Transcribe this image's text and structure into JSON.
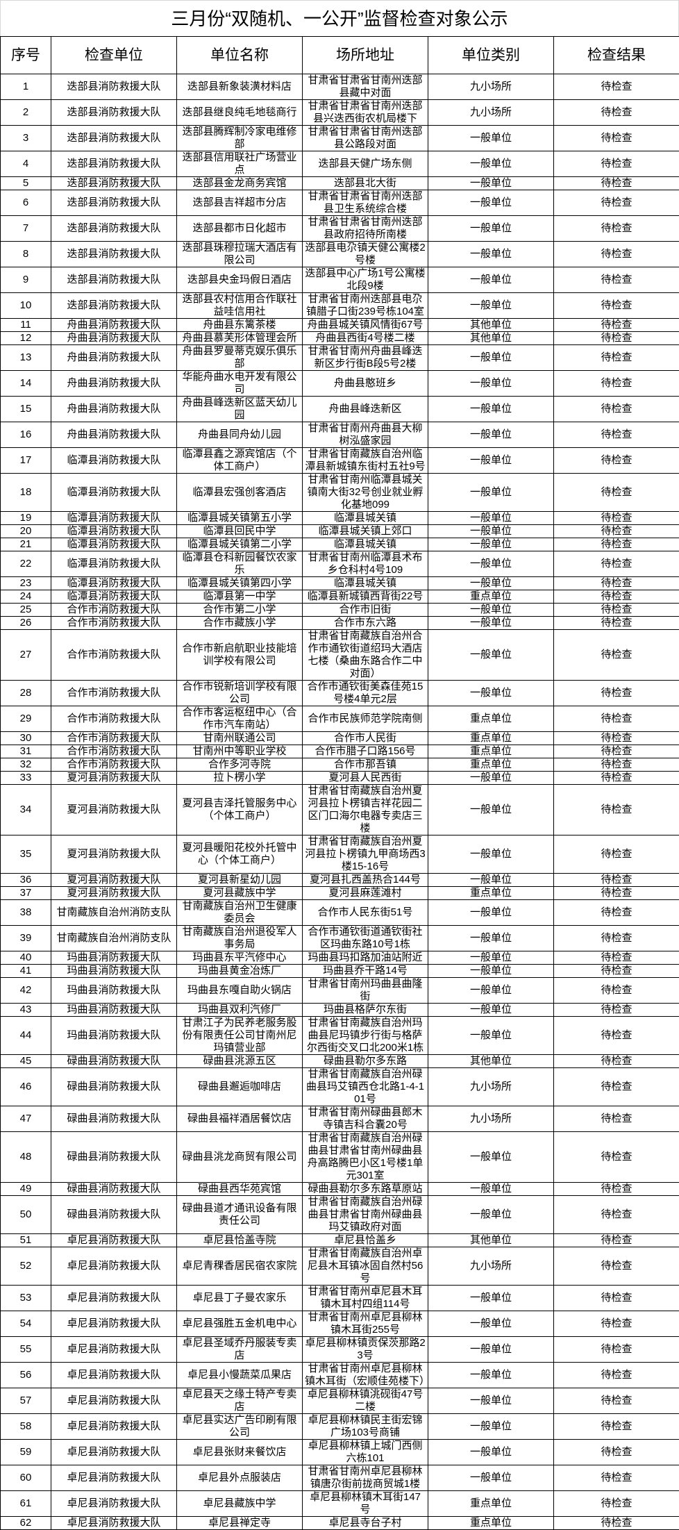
{
  "title": "三月份“双随机、一公开”监督检查对象公示",
  "columns": [
    "序号",
    "检查单位",
    "单位名称",
    "场所地址",
    "单位类别",
    "检查结果"
  ],
  "rows": [
    [
      "1",
      "迭部县消防救援大队",
      "迭部县新象装潢材料店",
      "甘肃省甘肃省甘南州迭部县藏中对面",
      "九小场所",
      "待检查"
    ],
    [
      "2",
      "迭部县消防救援大队",
      "迭部县继良纯毛地毯商行",
      "甘肃省甘肃省甘南州迭部县兴迭西街农机局楼下",
      "九小场所",
      "待检查"
    ],
    [
      "3",
      "迭部县消防救援大队",
      "迭部县腾辉制冷家电维修部",
      "甘肃省甘肃省甘南州迭部县公路段对面",
      "一般单位",
      "待检查"
    ],
    [
      "4",
      "迭部县消防救援大队",
      "迭部县信用联社广场营业点",
      "迭部县天健广场东侧",
      "一般单位",
      "待检查"
    ],
    [
      "5",
      "迭部县消防救援大队",
      "迭部县金龙商务宾馆",
      "迭部县北大街",
      "一般单位",
      "待检查"
    ],
    [
      "6",
      "迭部县消防救援大队",
      "迭部县吉祥超市分店",
      "甘肃省甘肃省甘南州迭部县卫生系统综合楼",
      "一般单位",
      "待检查"
    ],
    [
      "7",
      "迭部县消防救援大队",
      "迭部县都市日化超市",
      "甘肃省甘肃省甘南州迭部县政府招待所南楼",
      "一般单位",
      "待检查"
    ],
    [
      "8",
      "迭部县消防救援大队",
      "迭部县珠穆拉瑞大酒店有限公司",
      "迭部县电尕镇天健公寓楼2号楼",
      "一般单位",
      "待检查"
    ],
    [
      "9",
      "迭部县消防救援大队",
      "迭部县央金玛假日酒店",
      "迭部县中心广场1号公寓楼北段9楼",
      "一般单位",
      "待检查"
    ],
    [
      "10",
      "迭部县消防救援大队",
      "迭部县农村信用合作联社益哇信用社",
      "甘肃省甘南州迭部县电尕镇腊子口街239号栋104室",
      "一般单位",
      "待检查"
    ],
    [
      "11",
      "舟曲县消防救援大队",
      "舟曲县东篱茶楼",
      "舟曲县城关镇风情街67号",
      "其他单位",
      "待检查"
    ],
    [
      "12",
      "舟曲县消防救援大队",
      "舟曲县慕芙形体管理会所",
      "舟曲县西街4号楼二楼",
      "其他单位",
      "待检查"
    ],
    [
      "13",
      "舟曲县消防救援大队",
      "舟曲县罗曼蒂克娱乐俱乐部",
      "甘肃省甘南州舟曲县峰迭新区步行街B段5号2楼",
      "一般单位",
      "待检查"
    ],
    [
      "14",
      "舟曲县消防救援大队",
      "华能舟曲水电开发有限公司",
      "舟曲县憨班乡",
      "一般单位",
      "待检查"
    ],
    [
      "15",
      "舟曲县消防救援大队",
      "舟曲县峰迭新区蓝天幼儿园",
      "舟曲县峰迭新区",
      "一般单位",
      "待检查"
    ],
    [
      "16",
      "舟曲县消防救援大队",
      "舟曲县同舟幼儿园",
      "甘肃省甘南州舟曲县大柳树泓盛家园",
      "一般单位",
      "待检查"
    ],
    [
      "17",
      "临潭县消防救援大队",
      "临潭县鑫之源宾馆店（个体工商户）",
      "甘肃省甘南藏族自治州临潭县新城镇东街村五社9号",
      "一般单位",
      "待检查"
    ],
    [
      "18",
      "临潭县消防救援大队",
      "临潭县宏强创客酒店",
      "甘肃省甘南州临潭县城关镇南大街32号创业就业孵化基地099",
      "一般单位",
      "待检查"
    ],
    [
      "19",
      "临潭县消防救援大队",
      "临潭县城关镇第五小学",
      "临潭县城关镇",
      "一般单位",
      "待检查"
    ],
    [
      "20",
      "临潭县消防救援大队",
      "临潭县回民中学",
      "临潭县城关镇上郊口",
      "一般单位",
      "待检查"
    ],
    [
      "21",
      "临潭县消防救援大队",
      "临潭县城关镇第二小学",
      "临潭县城关镇",
      "一般单位",
      "待检查"
    ],
    [
      "22",
      "临潭县消防救援大队",
      "临潭县仓科新园餐饮农家乐",
      "甘肃省甘南州临潭县术布乡仓科村4号109",
      "一般单位",
      "待检查"
    ],
    [
      "23",
      "临潭县消防救援大队",
      "临潭县城关镇第四小学",
      "临潭县城关镇",
      "一般单位",
      "待检查"
    ],
    [
      "24",
      "临潭县消防救援大队",
      "临潭县第一中学",
      "临潭县新城镇西背街22号",
      "重点单位",
      "待检查"
    ],
    [
      "25",
      "合作市消防救援大队",
      "合作市第二小学",
      "合作市旧街",
      "一般单位",
      "待检查"
    ],
    [
      "26",
      "合作市消防救援大队",
      "合作市藏族小学",
      "合作市东六路",
      "一般单位",
      "待检查"
    ],
    [
      "27",
      "合作市消防救援大队",
      "合作市新启航职业技能培训学校有限公司",
      "甘肃省甘南藏族自治州合作市通钦街道绍玛大酒店七楼（桑曲东路合作二中对面）",
      "一般单位",
      "待检查"
    ],
    [
      "28",
      "合作市消防救援大队",
      "合作市锐新培训学校有限公司",
      "合作市通钦街美森佳苑15号楼4单元2层",
      "一般单位",
      "待检查"
    ],
    [
      "29",
      "合作市消防救援大队",
      "合作市客运枢纽中心（合作市汽车南站）",
      "合作市民族师范学院南侧",
      "重点单位",
      "待检查"
    ],
    [
      "30",
      "合作市消防救援大队",
      "甘南州联通公司",
      "合作市人民街",
      "重点单位",
      "待检查"
    ],
    [
      "31",
      "合作市消防救援大队",
      "甘南州中等职业学校",
      "合作市腊子口路156号",
      "重点单位",
      "待检查"
    ],
    [
      "32",
      "合作市消防救援大队",
      "合作多河寺院",
      "合作市那吾镇",
      "重点单位",
      "待检查"
    ],
    [
      "33",
      "夏河县消防救援大队",
      "拉卜楞小学",
      "夏河县人民西街",
      "一般单位",
      "待检查"
    ],
    [
      "34",
      "夏河县消防救援大队",
      "夏河县吉泽托管服务中心（个体工商户）",
      "甘肃省甘南藏族自治州夏河县拉卜楞镇吉祥花园二区门口海尔电器专卖店三楼",
      "一般单位",
      "待检查"
    ],
    [
      "35",
      "夏河县消防救援大队",
      "夏河县暖阳花校外托管中心（个体工商户）",
      "甘肃省甘南藏族自治州夏河县拉卜楞镇九甲商场西3楼15-16号",
      "一般单位",
      "待检查"
    ],
    [
      "36",
      "夏河县消防救援大队",
      "夏河县新星幼儿园",
      "夏河县扎西盖热合144号",
      "一般单位",
      "待检查"
    ],
    [
      "37",
      "夏河县消防救援大队",
      "夏河县藏族中学",
      "夏河县麻莲滩村",
      "重点单位",
      "待检查"
    ],
    [
      "38",
      "甘南藏族自治州消防支队",
      "甘南藏族自治州卫生健康委员会",
      "合作市人民东街51号",
      "一般单位",
      "待检查"
    ],
    [
      "39",
      "甘南藏族自治州消防支队",
      "甘南藏族自治州退役军人事务局",
      "合作市通钦街道通钦街社区玛曲东路10号1栋",
      "一般单位",
      "待检查"
    ],
    [
      "40",
      "玛曲县消防救援大队",
      "玛曲县东平汽修中心",
      "玛曲县玛扣路加油站附近",
      "一般单位",
      "待检查"
    ],
    [
      "41",
      "玛曲县消防救援大队",
      "玛曲县黄金冶炼厂",
      "玛曲县乔干路14号",
      "一般单位",
      "待检查"
    ],
    [
      "42",
      "玛曲县消防救援大队",
      "玛曲县东嘎自助火锅店",
      "甘肃省甘南州玛曲县曲隆街",
      "一般单位",
      "待检查"
    ],
    [
      "43",
      "玛曲县消防救援大队",
      "玛曲县双利汽修厂",
      "玛曲县格萨尔东街",
      "一般单位",
      "待检查"
    ],
    [
      "44",
      "玛曲县消防救援大队",
      "甘肃江子为民养老服务股份有限责任公司甘南州尼玛镇营业部",
      "甘肃省甘南藏族自治州玛曲县尼玛镇步行街与格萨尔西街交叉口北200米1栋",
      "一般单位",
      "待检查"
    ],
    [
      "45",
      "碌曲县消防救援大队",
      "碌曲县洮源五区",
      "碌曲县勒尔多东路",
      "其他单位",
      "待检查"
    ],
    [
      "46",
      "碌曲县消防救援大队",
      "碌曲县邂逅咖啡店",
      "甘肃省甘南藏族自治州碌曲县玛艾镇西仓北路1-4-101号",
      "九小场所",
      "待检查"
    ],
    [
      "47",
      "碌曲县消防救援大队",
      "碌曲县福祥酒居餐饮店",
      "甘肃省甘南州碌曲县郎木寺镇吉科合囊20号",
      "九小场所",
      "待检查"
    ],
    [
      "48",
      "碌曲县消防救援大队",
      "碌曲县洮龙商贸有限公司",
      "甘肃省甘南藏族自治州碌曲县甘肃省甘南州碌曲县舟高路腾巴小区1号楼1单元301室",
      "一般单位",
      "待检查"
    ],
    [
      "49",
      "碌曲县消防救援大队",
      "碌曲县西华苑宾馆",
      "碌曲县勒尔多东路草原站",
      "一般单位",
      "待检查"
    ],
    [
      "50",
      "碌曲县消防救援大队",
      "碌曲县道才通讯设备有限责任公司",
      "甘肃省甘南藏族自治州碌曲县甘肃省甘南州碌曲县玛艾镇政府对面",
      "一般单位",
      "待检查"
    ],
    [
      "51",
      "卓尼县消防救援大队",
      "卓尼县恰盖寺院",
      "卓尼县恰盖乡",
      "其他单位",
      "待检查"
    ],
    [
      "52",
      "卓尼县消防救援大队",
      "卓尼青稞香居民宿农家院",
      "甘肃省甘南藏族自治州卓尼县木耳镇冰固自然村56号",
      "九小场所",
      "待检查"
    ],
    [
      "53",
      "卓尼县消防救援大队",
      "卓尼县丁子曼农家乐",
      "甘肃省甘南州卓尼县木耳镇木耳村四组114号",
      "一般单位",
      "待检查"
    ],
    [
      "54",
      "卓尼县消防救援大队",
      "卓尼县强胜五金机电中心",
      "甘肃省甘南州卓尼县柳林镇木耳街255号",
      "一般单位",
      "待检查"
    ],
    [
      "55",
      "卓尼县消防救援大队",
      "卓尼县圣域乔丹服装专卖店",
      "卓尼县柳林镇贡保茨那路23号",
      "一般单位",
      "待检查"
    ],
    [
      "56",
      "卓尼县消防救援大队",
      "卓尼县小慢蔬菜瓜果店",
      "甘肃省甘南州卓尼县柳林镇木耳街（宏顺佳苑楼下）",
      "一般单位",
      "待检查"
    ],
    [
      "57",
      "卓尼县消防救援大队",
      "卓尼县天之缘土特产专卖店",
      "卓尼县柳林镇洮砚街47号二楼",
      "一般单位",
      "待检查"
    ],
    [
      "58",
      "卓尼县消防救援大队",
      "卓尼县实达广告印刷有限公司",
      "卓尼县柳林镇民主街宏锦广场103号商铺",
      "一般单位",
      "待检查"
    ],
    [
      "59",
      "卓尼县消防救援大队",
      "卓尼县张财来餐饮店",
      "卓尼县柳林镇上城门西侧六栋101",
      "一般单位",
      "待检查"
    ],
    [
      "60",
      "卓尼县消防救援大队",
      "卓尼县外点服装店",
      "甘肃省甘南州卓尼县柳林镇唐尕街前拢商贸城1楼",
      "一般单位",
      "待检查"
    ],
    [
      "61",
      "卓尼县消防救援大队",
      "卓尼县藏族中学",
      "卓尼县柳林镇木耳街147号",
      "重点单位",
      "待检查"
    ],
    [
      "62",
      "卓尼县消防救援大队",
      "卓尼县禅定寺",
      "卓尼县寺台子村",
      "重点单位",
      "待检查"
    ]
  ]
}
